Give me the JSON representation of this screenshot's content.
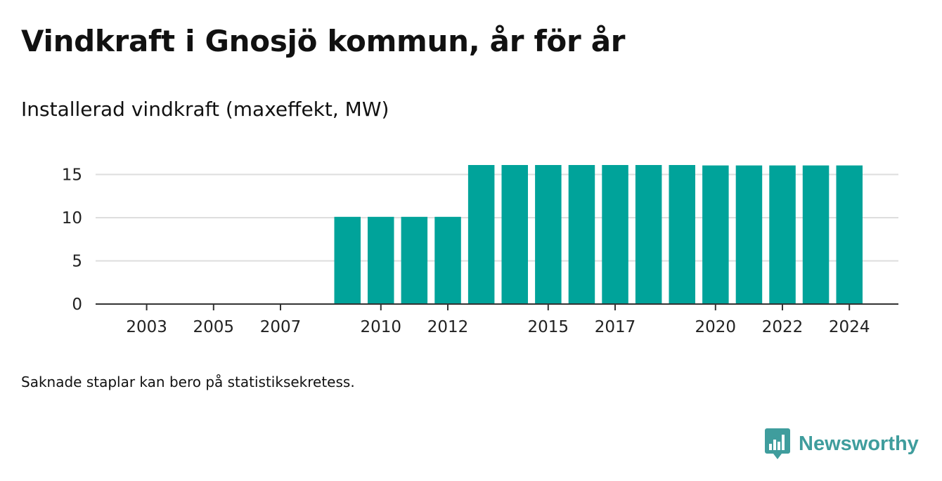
{
  "title": "Vindkraft i Gnosjö kommun, år för år",
  "subtitle": "Installerad vindkraft (maxeffekt, MW)",
  "footnote": "Saknade staplar kan bero på statistiksekretess.",
  "brand": {
    "name": "Newsworthy",
    "color": "#3f9d9d",
    "icon": "newsworthy-logo-icon"
  },
  "chart_data": {
    "type": "bar",
    "title": "Vindkraft i Gnosjö kommun, år för år",
    "subtitle": "Installerad vindkraft (maxeffekt, MW)",
    "xlabel": "",
    "ylabel": "",
    "categories": [
      "2003",
      "2004",
      "2005",
      "2006",
      "2007",
      "2008",
      "2009",
      "2010",
      "2011",
      "2012",
      "2013",
      "2014",
      "2015",
      "2016",
      "2017",
      "2018",
      "2019",
      "2020",
      "2021",
      "2022",
      "2023",
      "2024"
    ],
    "x_tick_labels": [
      "2003",
      "2005",
      "2007",
      "2010",
      "2012",
      "2015",
      "2017",
      "2020",
      "2022",
      "2024"
    ],
    "values": [
      null,
      null,
      null,
      null,
      null,
      null,
      10.1,
      10.1,
      10.1,
      10.1,
      16.1,
      16.1,
      16.1,
      16.1,
      16.1,
      16.1,
      16.1,
      16.05,
      16.05,
      16.05,
      16.05,
      16.05
    ],
    "ylim": [
      0,
      17.5
    ],
    "y_ticks": [
      0,
      5,
      10,
      15
    ],
    "grid": true,
    "bar_color": "#00a39a"
  }
}
